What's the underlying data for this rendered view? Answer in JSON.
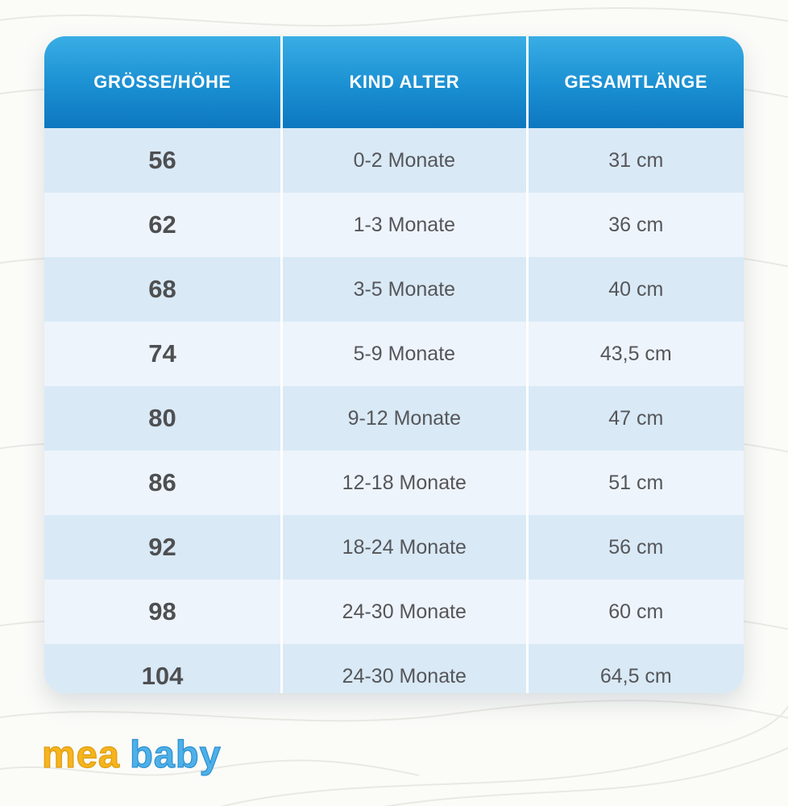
{
  "chart_data": {
    "type": "table",
    "columns": [
      "GRÖSSE/HÖHE",
      "KIND ALTER",
      "GESAMTLÄNGE"
    ],
    "rows": [
      [
        "56",
        "0-2 Monate",
        "31 cm"
      ],
      [
        "62",
        "1-3 Monate",
        "36 cm"
      ],
      [
        "68",
        "3-5 Monate",
        "40 cm"
      ],
      [
        "74",
        "5-9 Monate",
        "43,5 cm"
      ],
      [
        "80",
        "9-12 Monate",
        "47 cm"
      ],
      [
        "86",
        "12-18 Monate",
        "51 cm"
      ],
      [
        "92",
        "18-24 Monate",
        "56 cm"
      ],
      [
        "98",
        "24-30 Monate",
        "60 cm"
      ],
      [
        "104",
        "24-30 Monate",
        "64,5 cm"
      ]
    ]
  },
  "logo": {
    "mea": "mea",
    "baby": "baby"
  },
  "colors": {
    "header_gradient_top": "#39ade4",
    "header_gradient_bottom": "#0d77bf",
    "row_dark": "#d9e9f6",
    "row_light": "#eef4fb",
    "header_text": "#ffffff",
    "size_text": "#4e4f51",
    "body_text": "#55565a",
    "logo_mea": "#f6b41d",
    "logo_baby": "#4fb0e8",
    "page_background": "#fbfbf8"
  }
}
